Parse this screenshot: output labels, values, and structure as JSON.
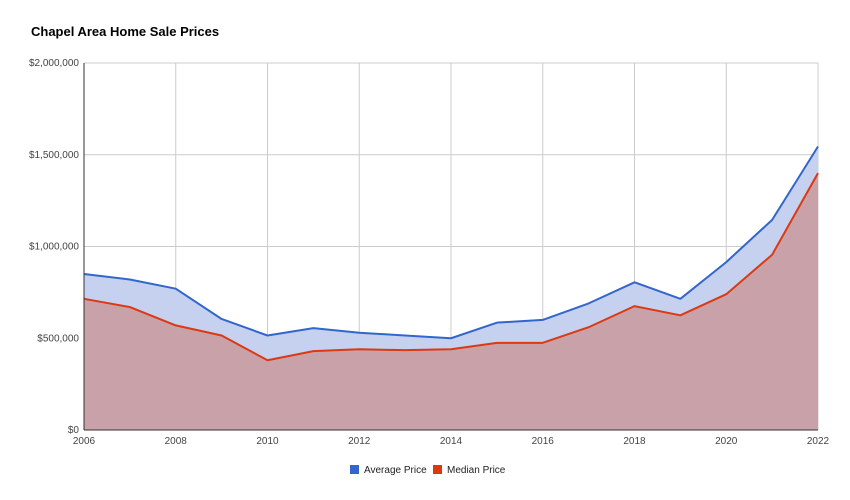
{
  "chart_data": {
    "type": "area",
    "title": "Chapel Area Home Sale Prices",
    "xlabel": "",
    "ylabel": "",
    "x": [
      2006,
      2007,
      2008,
      2009,
      2010,
      2011,
      2012,
      2013,
      2014,
      2015,
      2016,
      2017,
      2018,
      2019,
      2020,
      2021,
      2022
    ],
    "x_ticks": [
      "2006",
      "2008",
      "2010",
      "2012",
      "2014",
      "2016",
      "2018",
      "2020",
      "2022"
    ],
    "x_tick_values": [
      2006,
      2008,
      2010,
      2012,
      2014,
      2016,
      2018,
      2020,
      2022
    ],
    "y_ticks": [
      "$0",
      "$500,000",
      "$1,000,000",
      "$1,500,000",
      "$2,000,000"
    ],
    "y_tick_values": [
      0,
      500000,
      1000000,
      1500000,
      2000000
    ],
    "xlim": [
      2006,
      2022
    ],
    "ylim": [
      0,
      2000000
    ],
    "grid": true,
    "legend_position": "bottom",
    "series": [
      {
        "name": "Average Price",
        "color": "#3366cc",
        "fill": "#c5d1ef",
        "values": [
          850000,
          820000,
          770000,
          605000,
          515000,
          555000,
          530000,
          515000,
          500000,
          585000,
          600000,
          690000,
          805000,
          715000,
          915000,
          1145000,
          1545000
        ]
      },
      {
        "name": "Median Price",
        "color": "#dc3912",
        "fill": "#c9a2a9",
        "values": [
          715000,
          670000,
          570000,
          515000,
          380000,
          430000,
          440000,
          435000,
          440000,
          475000,
          475000,
          560000,
          675000,
          625000,
          740000,
          955000,
          1400000
        ]
      }
    ]
  }
}
